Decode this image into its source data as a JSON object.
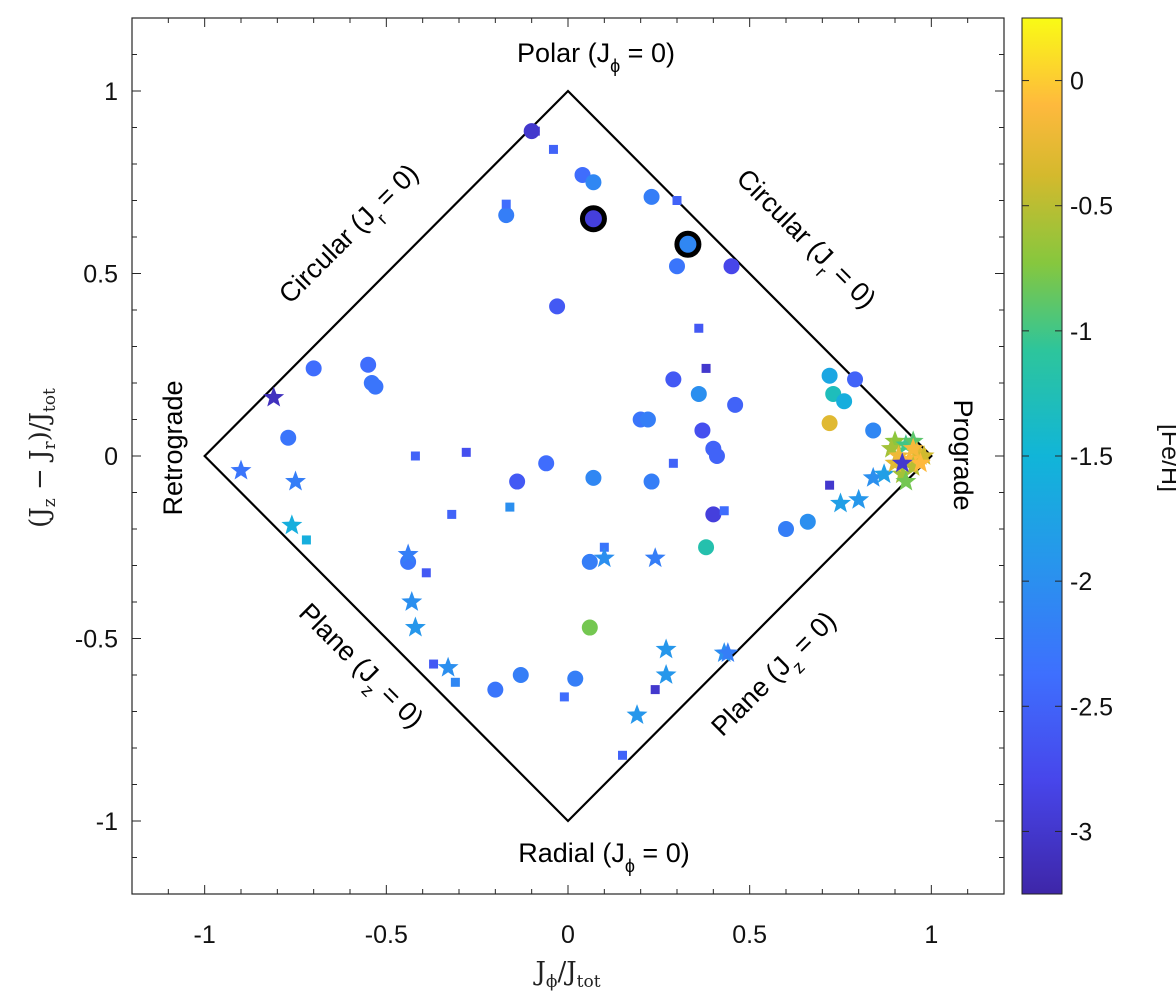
{
  "chart_data": {
    "type": "scatter",
    "title": "",
    "xlabel": "Jϕ/Jtot",
    "ylabel": "(Jz − Jr)/Jtot",
    "xlim": [
      -1.2,
      1.2
    ],
    "ylim": [
      -1.2,
      1.2
    ],
    "xticks": [
      -1,
      -0.5,
      0,
      0.5,
      1
    ],
    "yticks": [
      -1,
      -0.5,
      0,
      0.5,
      1
    ],
    "xtick_labels": [
      "-1",
      "-0.5",
      "0",
      "0.5",
      "1"
    ],
    "ytick_labels": [
      "-1",
      "-0.5",
      "0",
      "0.5",
      "1"
    ],
    "grid": false,
    "region_labels": {
      "top": "Polar (Jϕ = 0)",
      "bottom": "Radial (Jϕ = 0)",
      "left": "Retrograde",
      "right": "Prograde",
      "upper_left": "Circular (Jr = 0)",
      "upper_right": "Circular (Jr = 0)",
      "lower_left": "Plane (Jz = 0)",
      "lower_right": "Plane (Jz = 0)"
    },
    "colorbar": {
      "label": "[Fe/H]",
      "range": [
        -3.25,
        0.25
      ],
      "ticks": [
        0,
        -0.5,
        -1,
        -1.5,
        -2,
        -2.5,
        -3
      ],
      "tick_labels": [
        "0",
        "-0.5",
        "-1",
        "-1.5",
        "-2",
        "-2.5",
        "-3"
      ],
      "colormap": "parula"
    },
    "series": [
      {
        "marker": "circle",
        "points": [
          {
            "x": -0.1,
            "y": 0.89,
            "feh": -3.0
          },
          {
            "x": 0.04,
            "y": 0.77,
            "feh": -2.4
          },
          {
            "x": 0.07,
            "y": 0.75,
            "feh": -2.1
          },
          {
            "x": 0.23,
            "y": 0.71,
            "feh": -2.2
          },
          {
            "x": -0.17,
            "y": 0.66,
            "feh": -2.2
          },
          {
            "x": 0.3,
            "y": 0.52,
            "feh": -2.3
          },
          {
            "x": 0.45,
            "y": 0.52,
            "feh": -2.8
          },
          {
            "x": -0.03,
            "y": 0.41,
            "feh": -2.6
          },
          {
            "x": -0.7,
            "y": 0.24,
            "feh": -2.4
          },
          {
            "x": -0.55,
            "y": 0.25,
            "feh": -2.4
          },
          {
            "x": -0.54,
            "y": 0.2,
            "feh": -2.3
          },
          {
            "x": -0.53,
            "y": 0.19,
            "feh": -2.3
          },
          {
            "x": -0.77,
            "y": 0.05,
            "feh": -2.3
          },
          {
            "x": 0.29,
            "y": 0.21,
            "feh": -2.6
          },
          {
            "x": 0.36,
            "y": 0.17,
            "feh": -2.0
          },
          {
            "x": 0.2,
            "y": 0.1,
            "feh": -2.3
          },
          {
            "x": 0.22,
            "y": 0.1,
            "feh": -2.2
          },
          {
            "x": 0.37,
            "y": 0.07,
            "feh": -2.7
          },
          {
            "x": 0.46,
            "y": 0.14,
            "feh": -2.5
          },
          {
            "x": 0.4,
            "y": 0.02,
            "feh": -2.5
          },
          {
            "x": 0.41,
            "y": 0.0,
            "feh": -2.5
          },
          {
            "x": -0.06,
            "y": -0.02,
            "feh": -2.4
          },
          {
            "x": -0.14,
            "y": -0.07,
            "feh": -2.6
          },
          {
            "x": 0.07,
            "y": -0.06,
            "feh": -2.1
          },
          {
            "x": 0.23,
            "y": -0.07,
            "feh": -2.2
          },
          {
            "x": 0.4,
            "y": -0.16,
            "feh": -2.9
          },
          {
            "x": 0.6,
            "y": -0.2,
            "feh": -2.2
          },
          {
            "x": 0.66,
            "y": -0.18,
            "feh": -2.0
          },
          {
            "x": 0.72,
            "y": 0.22,
            "feh": -1.7
          },
          {
            "x": 0.73,
            "y": 0.17,
            "feh": -1.3
          },
          {
            "x": 0.76,
            "y": 0.15,
            "feh": -1.6
          },
          {
            "x": 0.79,
            "y": 0.21,
            "feh": -2.5
          },
          {
            "x": 0.72,
            "y": 0.09,
            "feh": -0.3
          },
          {
            "x": 0.84,
            "y": 0.07,
            "feh": -2.1
          },
          {
            "x": 0.38,
            "y": -0.25,
            "feh": -1.2
          },
          {
            "x": -0.44,
            "y": -0.29,
            "feh": -2.3
          },
          {
            "x": 0.06,
            "y": -0.29,
            "feh": -2.2
          },
          {
            "x": 0.06,
            "y": -0.47,
            "feh": -0.8
          },
          {
            "x": -0.13,
            "y": -0.6,
            "feh": -2.2
          },
          {
            "x": -0.2,
            "y": -0.64,
            "feh": -2.3
          },
          {
            "x": 0.02,
            "y": -0.61,
            "feh": -2.2
          }
        ]
      },
      {
        "marker": "square",
        "points": [
          {
            "x": -0.09,
            "y": 0.89,
            "feh": -3.0
          },
          {
            "x": -0.04,
            "y": 0.84,
            "feh": -2.5
          },
          {
            "x": -0.17,
            "y": 0.69,
            "feh": -2.4
          },
          {
            "x": 0.3,
            "y": 0.7,
            "feh": -2.5
          },
          {
            "x": 0.36,
            "y": 0.35,
            "feh": -2.6
          },
          {
            "x": 0.38,
            "y": 0.24,
            "feh": -3.0
          },
          {
            "x": -0.42,
            "y": 0.0,
            "feh": -2.5
          },
          {
            "x": -0.28,
            "y": 0.01,
            "feh": -2.7
          },
          {
            "x": 0.29,
            "y": -0.02,
            "feh": -2.5
          },
          {
            "x": 0.43,
            "y": -0.15,
            "feh": -2.4
          },
          {
            "x": -0.32,
            "y": -0.16,
            "feh": -2.5
          },
          {
            "x": -0.16,
            "y": -0.14,
            "feh": -2.0
          },
          {
            "x": 0.72,
            "y": -0.08,
            "feh": -3.0
          },
          {
            "x": -0.72,
            "y": -0.23,
            "feh": -1.6
          },
          {
            "x": -0.39,
            "y": -0.32,
            "feh": -2.6
          },
          {
            "x": 0.1,
            "y": -0.25,
            "feh": -2.3
          },
          {
            "x": -0.37,
            "y": -0.57,
            "feh": -2.6
          },
          {
            "x": -0.31,
            "y": -0.62,
            "feh": -2.1
          },
          {
            "x": -0.01,
            "y": -0.66,
            "feh": -2.4
          },
          {
            "x": 0.24,
            "y": -0.64,
            "feh": -3.0
          },
          {
            "x": 0.15,
            "y": -0.82,
            "feh": -2.5
          }
        ]
      },
      {
        "marker": "star",
        "points": [
          {
            "x": -0.81,
            "y": 0.16,
            "feh": -3.1
          },
          {
            "x": -0.9,
            "y": -0.04,
            "feh": -2.3
          },
          {
            "x": -0.75,
            "y": -0.07,
            "feh": -2.2
          },
          {
            "x": -0.76,
            "y": -0.19,
            "feh": -1.6
          },
          {
            "x": -0.44,
            "y": -0.27,
            "feh": -2.2
          },
          {
            "x": -0.43,
            "y": -0.4,
            "feh": -2.0
          },
          {
            "x": -0.42,
            "y": -0.47,
            "feh": -1.9
          },
          {
            "x": -0.33,
            "y": -0.58,
            "feh": -2.0
          },
          {
            "x": 0.1,
            "y": -0.28,
            "feh": -2.0
          },
          {
            "x": 0.24,
            "y": -0.28,
            "feh": -2.2
          },
          {
            "x": 0.27,
            "y": -0.53,
            "feh": -1.9
          },
          {
            "x": 0.27,
            "y": -0.6,
            "feh": -1.9
          },
          {
            "x": 0.43,
            "y": -0.54,
            "feh": -2.0
          },
          {
            "x": 0.44,
            "y": -0.54,
            "feh": -2.2
          },
          {
            "x": 0.19,
            "y": -0.71,
            "feh": -1.9
          },
          {
            "x": 0.75,
            "y": -0.13,
            "feh": -1.8
          },
          {
            "x": 0.8,
            "y": -0.12,
            "feh": -1.9
          },
          {
            "x": 0.84,
            "y": -0.06,
            "feh": -2.0
          },
          {
            "x": 0.87,
            "y": -0.05,
            "feh": -1.8
          },
          {
            "x": 0.9,
            "y": 0.04,
            "feh": -0.7
          },
          {
            "x": 0.93,
            "y": 0.03,
            "feh": -1.0
          },
          {
            "x": 0.95,
            "y": 0.04,
            "feh": -0.9
          },
          {
            "x": 0.96,
            "y": 0.01,
            "feh": -0.2
          },
          {
            "x": 0.97,
            "y": 0.0,
            "feh": -0.3
          },
          {
            "x": 0.98,
            "y": 0.0,
            "feh": -0.4
          },
          {
            "x": 0.94,
            "y": -0.01,
            "feh": -0.1
          },
          {
            "x": 0.95,
            "y": -0.03,
            "feh": -0.5
          },
          {
            "x": 0.92,
            "y": -0.05,
            "feh": -0.6
          },
          {
            "x": 0.89,
            "y": 0.02,
            "feh": -0.6
          },
          {
            "x": 0.9,
            "y": -0.02,
            "feh": -0.3
          },
          {
            "x": 0.93,
            "y": -0.07,
            "feh": -0.8
          },
          {
            "x": 0.91,
            "y": 0.0,
            "feh": -0.2
          },
          {
            "x": 0.97,
            "y": -0.02,
            "feh": -0.1
          },
          {
            "x": 0.95,
            "y": 0.02,
            "feh": -0.15
          },
          {
            "x": 0.92,
            "y": -0.02,
            "feh": -3.0
          }
        ]
      },
      {
        "marker": "circle-highlighted",
        "points": [
          {
            "x": 0.07,
            "y": 0.65,
            "feh": -2.9
          },
          {
            "x": 0.33,
            "y": 0.58,
            "feh": -2.1
          }
        ]
      }
    ]
  }
}
